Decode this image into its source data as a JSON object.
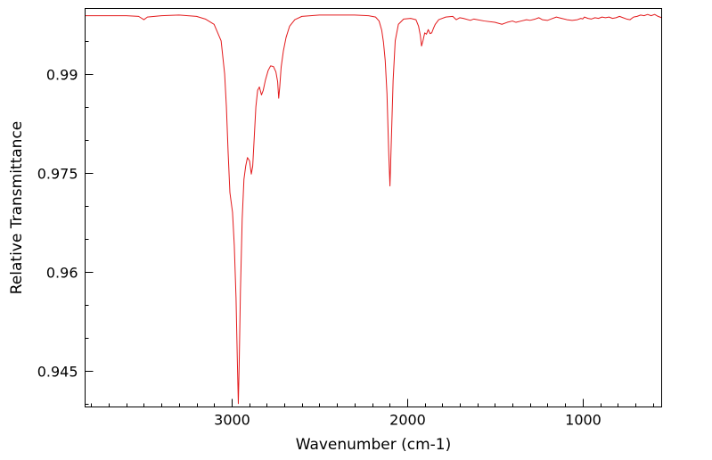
{
  "chart_data": {
    "type": "line",
    "title": "",
    "xlabel": "Wavenumber (cm-1)",
    "ylabel": "Relative Transmittance",
    "x_reversed": true,
    "xlim": [
      3835,
      550
    ],
    "ylim": [
      0.9395,
      0.9999
    ],
    "x_ticks": [
      {
        "value": 3000,
        "label": "3000"
      },
      {
        "value": 2000,
        "label": "2000"
      },
      {
        "value": 1000,
        "label": "1000"
      }
    ],
    "y_ticks": [
      {
        "value": 0.99,
        "label": "0.99"
      },
      {
        "value": 0.975,
        "label": "0.975"
      },
      {
        "value": 0.96,
        "label": "0.96"
      },
      {
        "value": 0.945,
        "label": "0.945"
      }
    ],
    "x_minor_step": 100,
    "y_minor_step": 0.005,
    "grid": false,
    "legend": "none",
    "series": [
      {
        "color": "#e31a1c",
        "points": [
          [
            3835,
            0.9988
          ],
          [
            3700,
            0.9988
          ],
          [
            3600,
            0.9988
          ],
          [
            3530,
            0.9987
          ],
          [
            3500,
            0.9982
          ],
          [
            3480,
            0.9986
          ],
          [
            3400,
            0.9988
          ],
          [
            3300,
            0.9989
          ],
          [
            3200,
            0.9987
          ],
          [
            3150,
            0.9983
          ],
          [
            3100,
            0.9975
          ],
          [
            3060,
            0.995
          ],
          [
            3040,
            0.99
          ],
          [
            3030,
            0.985
          ],
          [
            3020,
            0.978
          ],
          [
            3010,
            0.972
          ],
          [
            2995,
            0.969
          ],
          [
            2985,
            0.964
          ],
          [
            2975,
            0.956
          ],
          [
            2968,
            0.947
          ],
          [
            2962,
            0.94
          ],
          [
            2957,
            0.946
          ],
          [
            2950,
            0.957
          ],
          [
            2940,
            0.968
          ],
          [
            2930,
            0.974
          ],
          [
            2920,
            0.976
          ],
          [
            2910,
            0.9773
          ],
          [
            2898,
            0.9768
          ],
          [
            2888,
            0.9748
          ],
          [
            2880,
            0.976
          ],
          [
            2872,
            0.98
          ],
          [
            2862,
            0.985
          ],
          [
            2852,
            0.9875
          ],
          [
            2842,
            0.988
          ],
          [
            2830,
            0.9868
          ],
          [
            2820,
            0.9875
          ],
          [
            2808,
            0.989
          ],
          [
            2792,
            0.9905
          ],
          [
            2778,
            0.9912
          ],
          [
            2762,
            0.9911
          ],
          [
            2748,
            0.9903
          ],
          [
            2738,
            0.9888
          ],
          [
            2732,
            0.9863
          ],
          [
            2726,
            0.988
          ],
          [
            2718,
            0.991
          ],
          [
            2705,
            0.9935
          ],
          [
            2690,
            0.9955
          ],
          [
            2670,
            0.9972
          ],
          [
            2640,
            0.9982
          ],
          [
            2600,
            0.9987
          ],
          [
            2500,
            0.9989
          ],
          [
            2400,
            0.9989
          ],
          [
            2300,
            0.9989
          ],
          [
            2220,
            0.9988
          ],
          [
            2180,
            0.9986
          ],
          [
            2160,
            0.998
          ],
          [
            2145,
            0.9966
          ],
          [
            2135,
            0.9948
          ],
          [
            2125,
            0.992
          ],
          [
            2115,
            0.987
          ],
          [
            2105,
            0.978
          ],
          [
            2098,
            0.973
          ],
          [
            2090,
            0.98
          ],
          [
            2080,
            0.989
          ],
          [
            2068,
            0.995
          ],
          [
            2050,
            0.9975
          ],
          [
            2020,
            0.9983
          ],
          [
            1980,
            0.9984
          ],
          [
            1950,
            0.9982
          ],
          [
            1935,
            0.9972
          ],
          [
            1925,
            0.9958
          ],
          [
            1918,
            0.9942
          ],
          [
            1910,
            0.995
          ],
          [
            1900,
            0.9962
          ],
          [
            1890,
            0.996
          ],
          [
            1880,
            0.9967
          ],
          [
            1870,
            0.9961
          ],
          [
            1860,
            0.9962
          ],
          [
            1850,
            0.9969
          ],
          [
            1840,
            0.9975
          ],
          [
            1820,
            0.9982
          ],
          [
            1780,
            0.9986
          ],
          [
            1740,
            0.9987
          ],
          [
            1720,
            0.9982
          ],
          [
            1700,
            0.9985
          ],
          [
            1680,
            0.9984
          ],
          [
            1640,
            0.9981
          ],
          [
            1620,
            0.9983
          ],
          [
            1560,
            0.998
          ],
          [
            1500,
            0.9978
          ],
          [
            1460,
            0.9975
          ],
          [
            1430,
            0.9978
          ],
          [
            1400,
            0.998
          ],
          [
            1380,
            0.9978
          ],
          [
            1350,
            0.998
          ],
          [
            1320,
            0.9982
          ],
          [
            1300,
            0.9981
          ],
          [
            1270,
            0.9983
          ],
          [
            1250,
            0.9985
          ],
          [
            1230,
            0.9982
          ],
          [
            1200,
            0.9981
          ],
          [
            1180,
            0.9983
          ],
          [
            1150,
            0.9986
          ],
          [
            1120,
            0.9984
          ],
          [
            1090,
            0.9982
          ],
          [
            1060,
            0.9981
          ],
          [
            1030,
            0.9982
          ],
          [
            1010,
            0.9984
          ],
          [
            1000,
            0.9983
          ],
          [
            990,
            0.9986
          ],
          [
            970,
            0.9984
          ],
          [
            950,
            0.9983
          ],
          [
            930,
            0.9985
          ],
          [
            910,
            0.9984
          ],
          [
            890,
            0.9986
          ],
          [
            870,
            0.9985
          ],
          [
            850,
            0.9986
          ],
          [
            830,
            0.9984
          ],
          [
            810,
            0.9985
          ],
          [
            790,
            0.9987
          ],
          [
            770,
            0.9985
          ],
          [
            750,
            0.9983
          ],
          [
            730,
            0.9982
          ],
          [
            710,
            0.9986
          ],
          [
            690,
            0.9987
          ],
          [
            670,
            0.9989
          ],
          [
            650,
            0.9988
          ],
          [
            630,
            0.999
          ],
          [
            610,
            0.9988
          ],
          [
            590,
            0.999
          ],
          [
            570,
            0.9987
          ],
          [
            550,
            0.9985
          ]
        ]
      }
    ]
  }
}
